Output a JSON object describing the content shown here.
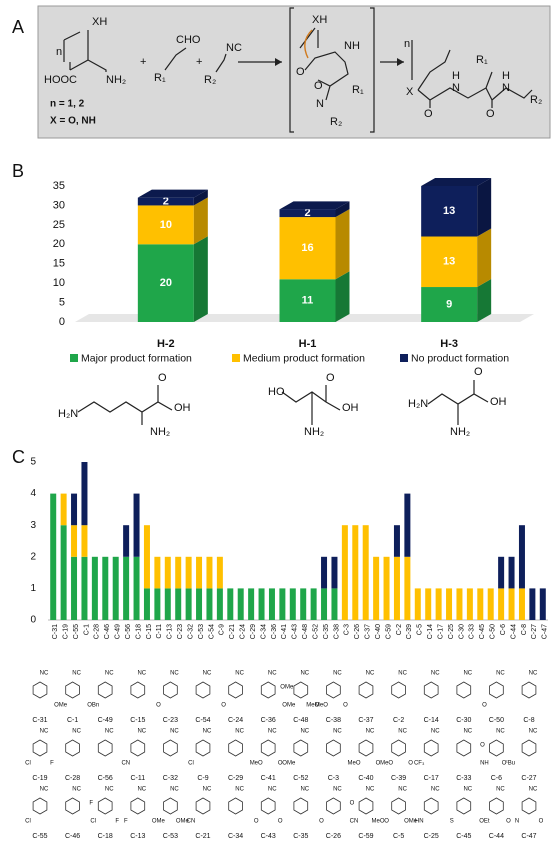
{
  "panel_labels": [
    "A",
    "B",
    "C"
  ],
  "scheme": {
    "texts": [
      "XH",
      "n",
      "HOOC",
      "NH₂",
      "n = 1, 2",
      "X = O, NH",
      "+",
      "R₁",
      "CHO",
      "+",
      "R₂",
      "NC",
      "XH",
      "NH",
      "O",
      "O",
      "R₁",
      "N",
      "R₂",
      "n",
      "X",
      "O",
      "N",
      "H",
      "R₁",
      "O",
      "N",
      "H",
      "R₂"
    ]
  },
  "chart_data": [
    {
      "type": "bar",
      "stacked": true,
      "3d": true,
      "legend": "bottom",
      "categories": [
        "H-2",
        "H-1",
        "H-3"
      ],
      "series": [
        {
          "name": "Major product formation",
          "color": "#1fa64a",
          "values": [
            20,
            11,
            9
          ]
        },
        {
          "name": "Medium product formation",
          "color": "#ffc000",
          "values": [
            10,
            16,
            13
          ]
        },
        {
          "name": "No product formation",
          "color": "#0e1f5b",
          "values": [
            2,
            2,
            13
          ]
        }
      ],
      "ylim": [
        0,
        35
      ],
      "yticks": [
        0,
        5,
        10,
        15,
        20,
        25,
        30,
        35
      ],
      "grid": false
    },
    {
      "type": "bar",
      "stacked": true,
      "3d": false,
      "categories": [
        "C-31",
        "C-19",
        "C-55",
        "C-1",
        "C-28",
        "C-46",
        "C-49",
        "C-56",
        "C-18",
        "C-15",
        "C-11",
        "C-13",
        "C-23",
        "C-32",
        "C-53",
        "C-54",
        "C-9",
        "C-21",
        "C-24",
        "C-29",
        "C-34",
        "C-36",
        "C-41",
        "C-43",
        "C-48",
        "C-52",
        "C-35",
        "C-38",
        "C-3",
        "C-26",
        "C-37",
        "C-40",
        "C-59",
        "C-2",
        "C-39",
        "C-5",
        "C-14",
        "C-17",
        "C-25",
        "C-30",
        "C-33",
        "C-45",
        "C-50",
        "C-6",
        "C-44",
        "C-8",
        "C-27",
        "C-47"
      ],
      "series": [
        {
          "color": "#1fa64a",
          "values": [
            4,
            3,
            2,
            2,
            2,
            2,
            2,
            2,
            2,
            1,
            1,
            1,
            1,
            1,
            1,
            1,
            1,
            1,
            1,
            1,
            1,
            1,
            1,
            1,
            1,
            1,
            1,
            1,
            0,
            0,
            0,
            0,
            0,
            0,
            0,
            0,
            0,
            0,
            0,
            0,
            0,
            0,
            0,
            0,
            0,
            0,
            0,
            0
          ]
        },
        {
          "color": "#ffc000",
          "values": [
            0,
            1,
            1,
            1,
            0,
            0,
            0,
            0,
            0,
            2,
            1,
            1,
            1,
            1,
            1,
            1,
            1,
            0,
            0,
            0,
            0,
            0,
            0,
            0,
            0,
            0,
            0,
            0,
            3,
            3,
            3,
            2,
            2,
            2,
            2,
            1,
            1,
            1,
            1,
            1,
            1,
            1,
            1,
            1,
            1,
            1,
            0,
            0
          ]
        },
        {
          "color": "#0e1f5b",
          "values": [
            0,
            0,
            1,
            2,
            0,
            0,
            0,
            1,
            2,
            0,
            0,
            0,
            0,
            0,
            0,
            0,
            0,
            0,
            0,
            0,
            0,
            0,
            0,
            0,
            0,
            0,
            1,
            1,
            0,
            0,
            0,
            0,
            0,
            1,
            2,
            0,
            0,
            0,
            0,
            0,
            0,
            0,
            0,
            1,
            1,
            2,
            1,
            1
          ]
        }
      ],
      "ylim": [
        0,
        5
      ],
      "yticks": [
        0,
        1,
        2,
        3,
        4,
        5
      ],
      "grid": false
    }
  ],
  "amines": [
    {
      "texts": [
        "H₂N",
        "O",
        "OH",
        "NH₂"
      ]
    },
    {
      "texts": [
        "HO",
        "O",
        "OH",
        "NH₂"
      ]
    },
    {
      "texts": [
        "H₂N",
        "O",
        "OH",
        "NH₂"
      ]
    }
  ],
  "structures": [
    [
      {
        "label": "C-31",
        "atoms": [
          "NC"
        ]
      },
      {
        "label": "C-1",
        "atoms": [
          "NC",
          "OMe"
        ]
      },
      {
        "label": "C-49",
        "atoms": [
          "NC",
          "OBn"
        ]
      },
      {
        "label": "C-15",
        "atoms": [
          "NC"
        ]
      },
      {
        "label": "C-23",
        "atoms": [
          "NC",
          "O"
        ]
      },
      {
        "label": "C-54",
        "atoms": [
          "NC"
        ]
      },
      {
        "label": "C-24",
        "atoms": [
          "NC",
          "O"
        ]
      },
      {
        "label": "C-36",
        "atoms": [
          "NC"
        ]
      },
      {
        "label": "C-48",
        "atoms": [
          "NC",
          "OMe",
          "MeO",
          "OMe"
        ]
      },
      {
        "label": "C-38",
        "atoms": [
          "NC",
          "MeO",
          "O"
        ]
      },
      {
        "label": "C-37",
        "atoms": [
          "NC"
        ]
      },
      {
        "label": "C-2",
        "atoms": [
          "NC"
        ]
      },
      {
        "label": "C-14",
        "atoms": [
          "NC"
        ]
      },
      {
        "label": "C-30",
        "atoms": [
          "NC"
        ]
      },
      {
        "label": "C-50",
        "atoms": [
          "NC",
          "O"
        ]
      },
      {
        "label": "C-8",
        "atoms": [
          "NC"
        ]
      }
    ],
    [
      {
        "label": "C-19",
        "atoms": [
          "NC",
          "Cl",
          "F"
        ]
      },
      {
        "label": "C-28",
        "atoms": [
          "NC"
        ]
      },
      {
        "label": "C-56",
        "atoms": [
          "NC"
        ]
      },
      {
        "label": "C-11",
        "atoms": [
          "NC",
          "CN"
        ]
      },
      {
        "label": "C-32",
        "atoms": [
          "NC"
        ]
      },
      {
        "label": "C-9",
        "atoms": [
          "NC",
          "Cl"
        ]
      },
      {
        "label": "C-29",
        "atoms": [
          "NC"
        ]
      },
      {
        "label": "C-41",
        "atoms": [
          "NC",
          "MeO",
          "O"
        ]
      },
      {
        "label": "C-52",
        "atoms": [
          "NC",
          "OMe"
        ]
      },
      {
        "label": "C-3",
        "atoms": [
          "NC"
        ]
      },
      {
        "label": "C-40",
        "atoms": [
          "NC",
          "MeO",
          "O"
        ]
      },
      {
        "label": "C-39",
        "atoms": [
          "NC",
          "MeO",
          "O"
        ]
      },
      {
        "label": "C-17",
        "atoms": [
          "NC",
          "CF₃"
        ]
      },
      {
        "label": "C-33",
        "atoms": [
          "NC"
        ]
      },
      {
        "label": "C-6",
        "atoms": [
          "NC",
          "NH",
          "OᵗBu",
          "O"
        ]
      },
      {
        "label": "C-27",
        "atoms": [
          "NC"
        ]
      }
    ],
    [
      {
        "label": "C-55",
        "atoms": [
          "NC",
          "Cl"
        ]
      },
      {
        "label": "C-46",
        "atoms": [
          "NC"
        ]
      },
      {
        "label": "C-18",
        "atoms": [
          "NC",
          "Cl",
          "F",
          "F"
        ]
      },
      {
        "label": "C-13",
        "atoms": [
          "NC",
          "F"
        ]
      },
      {
        "label": "C-53",
        "atoms": [
          "NC",
          "OMe",
          "OMe"
        ]
      },
      {
        "label": "C-21",
        "atoms": [
          "NC",
          "CN"
        ]
      },
      {
        "label": "C-34",
        "atoms": [
          "NC"
        ]
      },
      {
        "label": "C-43",
        "atoms": [
          "NC",
          "O",
          "O"
        ]
      },
      {
        "label": "C-35",
        "atoms": [
          "NC"
        ]
      },
      {
        "label": "C-26",
        "atoms": [
          "NC",
          "O"
        ]
      },
      {
        "label": "C-59",
        "atoms": [
          "NC",
          "CN",
          "MeO",
          "O"
        ]
      },
      {
        "label": "C-5",
        "atoms": [
          "NC",
          "O",
          "OMe"
        ]
      },
      {
        "label": "C-25",
        "atoms": [
          "NC",
          "HN"
        ]
      },
      {
        "label": "C-45",
        "atoms": [
          "NC",
          "S"
        ]
      },
      {
        "label": "C-44",
        "atoms": [
          "NC",
          "OEt",
          "O"
        ]
      },
      {
        "label": "C-47",
        "atoms": [
          "NC",
          "N",
          "O"
        ]
      }
    ]
  ]
}
